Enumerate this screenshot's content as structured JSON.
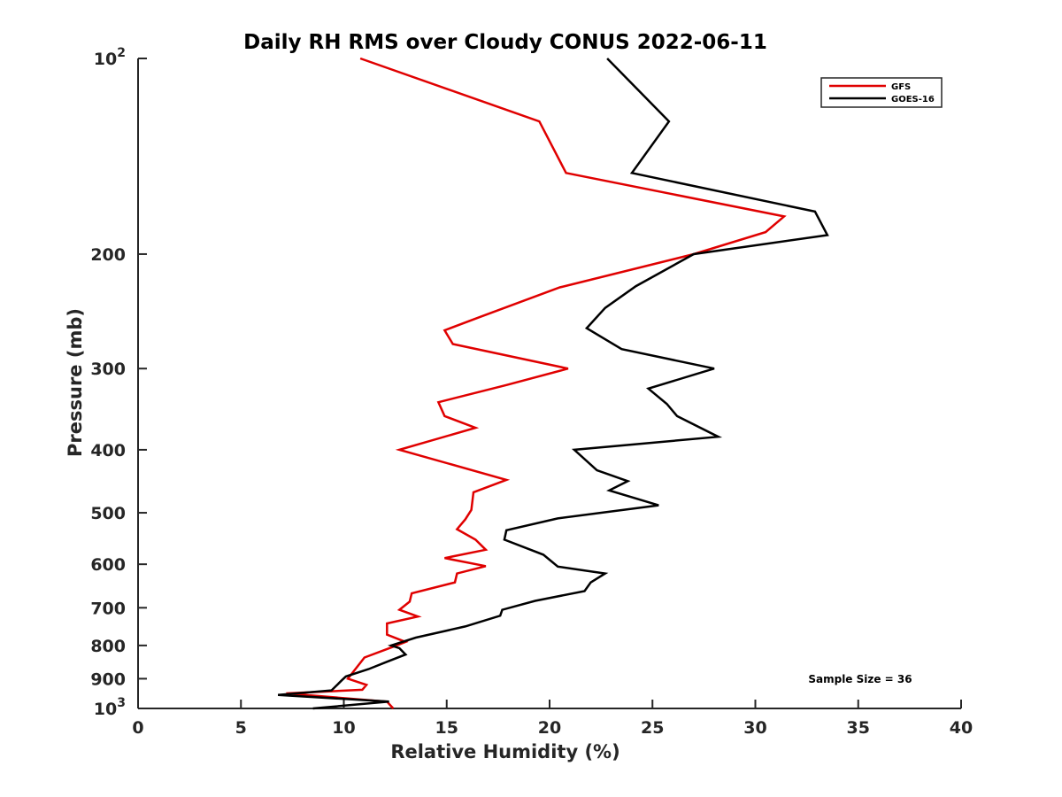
{
  "chart_data": {
    "type": "line",
    "title": "Daily RH RMS over Cloudy CONUS 2022-06-11",
    "xlabel": "Relative Humidity (%)",
    "ylabel": "Pressure (mb)",
    "xlim": [
      0,
      40
    ],
    "ylim": [
      100,
      1000
    ],
    "yscale": "log",
    "yaxis_inverted": true,
    "xticks": [
      "0",
      "5",
      "10",
      "15",
      "20",
      "25",
      "30",
      "35",
      "40"
    ],
    "yticks": [
      {
        "value": 100,
        "base": "10",
        "exp": "2"
      },
      {
        "value": 200,
        "label": "200"
      },
      {
        "value": 300,
        "label": "300"
      },
      {
        "value": 400,
        "label": "400"
      },
      {
        "value": 500,
        "label": "500"
      },
      {
        "value": 600,
        "label": "600"
      },
      {
        "value": 700,
        "label": "700"
      },
      {
        "value": 800,
        "label": "800"
      },
      {
        "value": 900,
        "label": "900"
      },
      {
        "value": 1000,
        "base": "10",
        "exp": "3"
      }
    ],
    "grid": false,
    "legend_position": "top-right",
    "annotation": "Sample Size = 36",
    "series": [
      {
        "name": "GFS",
        "color": "#e00000",
        "points": [
          [
            10.8,
            100
          ],
          [
            19.5,
            125
          ],
          [
            20.8,
            150
          ],
          [
            31.4,
            175
          ],
          [
            30.5,
            185
          ],
          [
            27.0,
            200
          ],
          [
            20.5,
            225
          ],
          [
            16.6,
            250
          ],
          [
            14.9,
            262
          ],
          [
            15.3,
            275
          ],
          [
            20.9,
            300
          ],
          [
            17.9,
            318
          ],
          [
            14.6,
            338
          ],
          [
            14.9,
            355
          ],
          [
            16.4,
            370
          ],
          [
            12.7,
            400
          ],
          [
            17.9,
            445
          ],
          [
            16.3,
            465
          ],
          [
            16.2,
            495
          ],
          [
            15.9,
            512
          ],
          [
            15.5,
            530
          ],
          [
            16.4,
            550
          ],
          [
            16.9,
            570
          ],
          [
            14.9,
            587
          ],
          [
            16.9,
            604
          ],
          [
            15.5,
            620
          ],
          [
            15.4,
            640
          ],
          [
            13.3,
            665
          ],
          [
            13.2,
            685
          ],
          [
            12.7,
            705
          ],
          [
            13.6,
            722
          ],
          [
            12.1,
            740
          ],
          [
            12.1,
            770
          ],
          [
            13.0,
            790
          ],
          [
            12.3,
            806
          ],
          [
            11.0,
            835
          ],
          [
            10.2,
            900
          ],
          [
            11.1,
            920
          ],
          [
            10.9,
            936
          ],
          [
            7.2,
            948
          ],
          [
            12.1,
            976
          ],
          [
            12.4,
            1000
          ]
        ]
      },
      {
        "name": "GOES-16",
        "color": "#000000",
        "points": [
          [
            22.8,
            100
          ],
          [
            25.8,
            125
          ],
          [
            24.0,
            150
          ],
          [
            32.9,
            172
          ],
          [
            33.5,
            187
          ],
          [
            27.0,
            200
          ],
          [
            24.2,
            224
          ],
          [
            22.7,
            242
          ],
          [
            21.8,
            260
          ],
          [
            23.5,
            280
          ],
          [
            28.0,
            300
          ],
          [
            24.8,
            322
          ],
          [
            25.7,
            340
          ],
          [
            26.2,
            355
          ],
          [
            28.2,
            382
          ],
          [
            21.2,
            400
          ],
          [
            22.3,
            430
          ],
          [
            23.8,
            447
          ],
          [
            22.9,
            462
          ],
          [
            25.3,
            487
          ],
          [
            20.4,
            510
          ],
          [
            17.9,
            532
          ],
          [
            17.8,
            550
          ],
          [
            19.7,
            580
          ],
          [
            20.4,
            605
          ],
          [
            22.7,
            620
          ],
          [
            22.0,
            640
          ],
          [
            21.7,
            660
          ],
          [
            19.3,
            683
          ],
          [
            17.7,
            705
          ],
          [
            17.6,
            720
          ],
          [
            15.9,
            748
          ],
          [
            13.5,
            778
          ],
          [
            12.3,
            800
          ],
          [
            12.7,
            808
          ],
          [
            13.0,
            826
          ],
          [
            12.0,
            850
          ],
          [
            11.2,
            870
          ],
          [
            10.1,
            893
          ],
          [
            9.9,
            905
          ],
          [
            9.4,
            938
          ],
          [
            6.8,
            953
          ],
          [
            12.2,
            976
          ],
          [
            8.5,
            1000
          ]
        ]
      }
    ]
  }
}
